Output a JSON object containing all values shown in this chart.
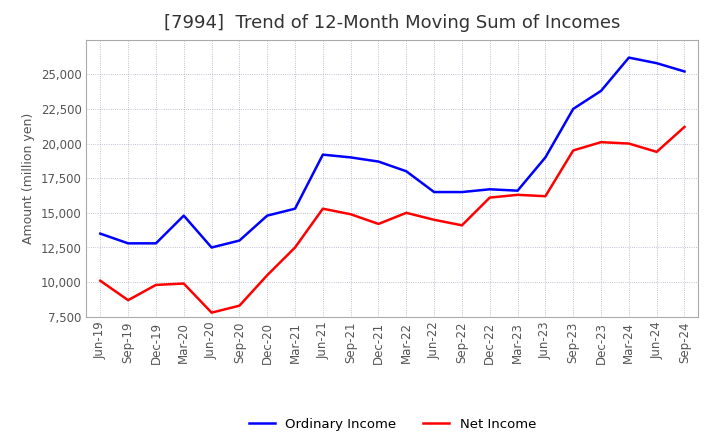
{
  "title": "[7994]  Trend of 12-Month Moving Sum of Incomes",
  "ylabel": "Amount (million yen)",
  "x_labels": [
    "Jun-19",
    "Sep-19",
    "Dec-19",
    "Mar-20",
    "Jun-20",
    "Sep-20",
    "Dec-20",
    "Mar-21",
    "Jun-21",
    "Sep-21",
    "Dec-21",
    "Mar-22",
    "Jun-22",
    "Sep-22",
    "Dec-22",
    "Mar-23",
    "Jun-23",
    "Sep-23",
    "Dec-23",
    "Mar-24",
    "Jun-24",
    "Sep-24"
  ],
  "ordinary_income": [
    13500,
    12800,
    12800,
    14800,
    12500,
    13000,
    14800,
    15300,
    19200,
    19000,
    18700,
    18000,
    16500,
    16500,
    16700,
    16600,
    19000,
    22500,
    23800,
    26200,
    25800,
    25200
  ],
  "net_income": [
    10100,
    8700,
    9800,
    9900,
    7800,
    8300,
    10500,
    12500,
    15300,
    14900,
    14200,
    15000,
    14500,
    14100,
    16100,
    16300,
    16200,
    19500,
    20100,
    20000,
    19400,
    21200
  ],
  "ordinary_color": "#0000ff",
  "net_color": "#ff0000",
  "ylim_min": 7500,
  "ylim_max": 27500,
  "yticks": [
    7500,
    10000,
    12500,
    15000,
    17500,
    20000,
    22500,
    25000
  ],
  "bg_color": "#ffffff",
  "grid_color": "#9999bb",
  "title_fontsize": 13,
  "title_color": "#333333",
  "axis_label_fontsize": 9,
  "tick_fontsize": 8.5,
  "legend_fontsize": 9.5,
  "line_width": 1.8
}
